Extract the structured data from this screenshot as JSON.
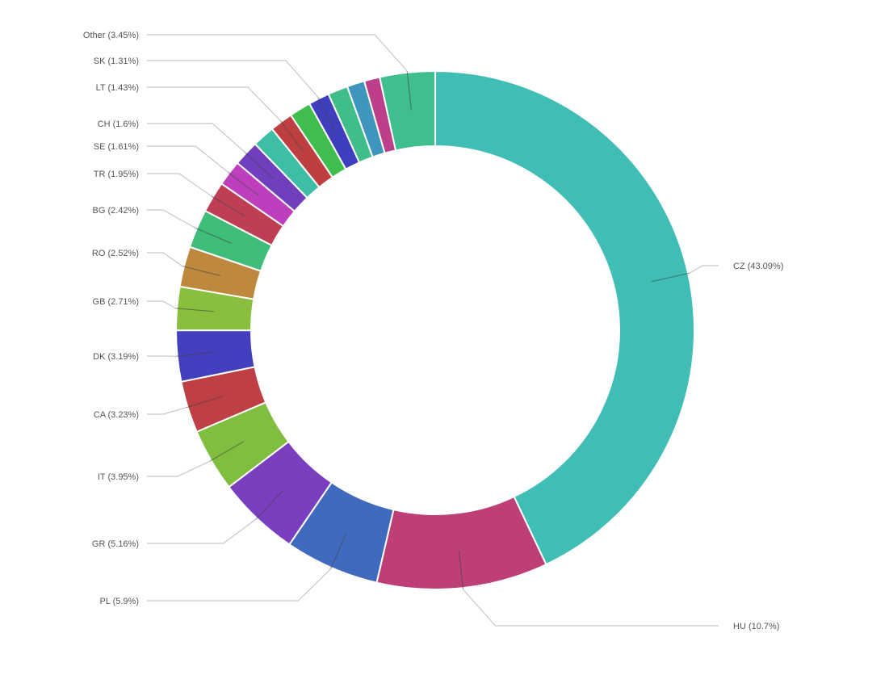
{
  "chart_data": {
    "type": "pie",
    "variant": "donut",
    "title": "",
    "legend": "none",
    "slices": [
      {
        "name": "CZ",
        "value": 43.09,
        "label": "CZ (43.09%)",
        "color": "#40beb5"
      },
      {
        "name": "HU",
        "value": 10.7,
        "label": "HU (10.7%)",
        "color": "#be3f78"
      },
      {
        "name": "PL",
        "value": 5.9,
        "label": "PL (5.9%)",
        "color": "#3f6abe"
      },
      {
        "name": "GR",
        "value": 5.16,
        "label": "GR (5.16%)",
        "color": "#7a3fbe"
      },
      {
        "name": "IT",
        "value": 3.95,
        "label": "IT (3.95%)",
        "color": "#7fbe3f"
      },
      {
        "name": "CA",
        "value": 3.23,
        "label": "CA (3.23%)",
        "color": "#be3f44"
      },
      {
        "name": "DK",
        "value": 3.19,
        "label": "DK (3.19%)",
        "color": "#443fbe"
      },
      {
        "name": "GB",
        "value": 2.71,
        "label": "GB (2.71%)",
        "color": "#89be3f"
      },
      {
        "name": "RO",
        "value": 2.52,
        "label": "RO (2.52%)",
        "color": "#be893f"
      },
      {
        "name": "BG",
        "value": 2.42,
        "label": "BG (2.42%)",
        "color": "#3fbe7a"
      },
      {
        "name": "TR",
        "value": 1.95,
        "label": "TR (1.95%)",
        "color": "#be3f55"
      },
      {
        "name": "SE",
        "value": 1.61,
        "label": "SE (1.61%)",
        "color": "#be3fbe"
      },
      {
        "name": "CH",
        "value": 1.6,
        "label": "CH (1.6%)",
        "color": "#6f3fbe"
      },
      {
        "name": "unlabeled-1",
        "value": 1.4,
        "label": "",
        "color": "#3fbea6"
      },
      {
        "name": "LT",
        "value": 1.43,
        "label": "LT (1.43%)",
        "color": "#be3f3f"
      },
      {
        "name": "unlabeled-2",
        "value": 1.35,
        "label": "",
        "color": "#3fbe4e"
      },
      {
        "name": "SK",
        "value": 1.31,
        "label": "SK (1.31%)",
        "color": "#3f3fbe"
      },
      {
        "name": "unlabeled-3",
        "value": 1.25,
        "label": "",
        "color": "#3fbe89"
      },
      {
        "name": "unlabeled-4",
        "value": 1.1,
        "label": "",
        "color": "#3f95be"
      },
      {
        "name": "unlabeled-5",
        "value": 0.98,
        "label": "",
        "color": "#be3f89"
      },
      {
        "name": "Other",
        "value": 3.45,
        "label": "Other (3.45%)",
        "color": "#3fbe8e"
      }
    ]
  }
}
